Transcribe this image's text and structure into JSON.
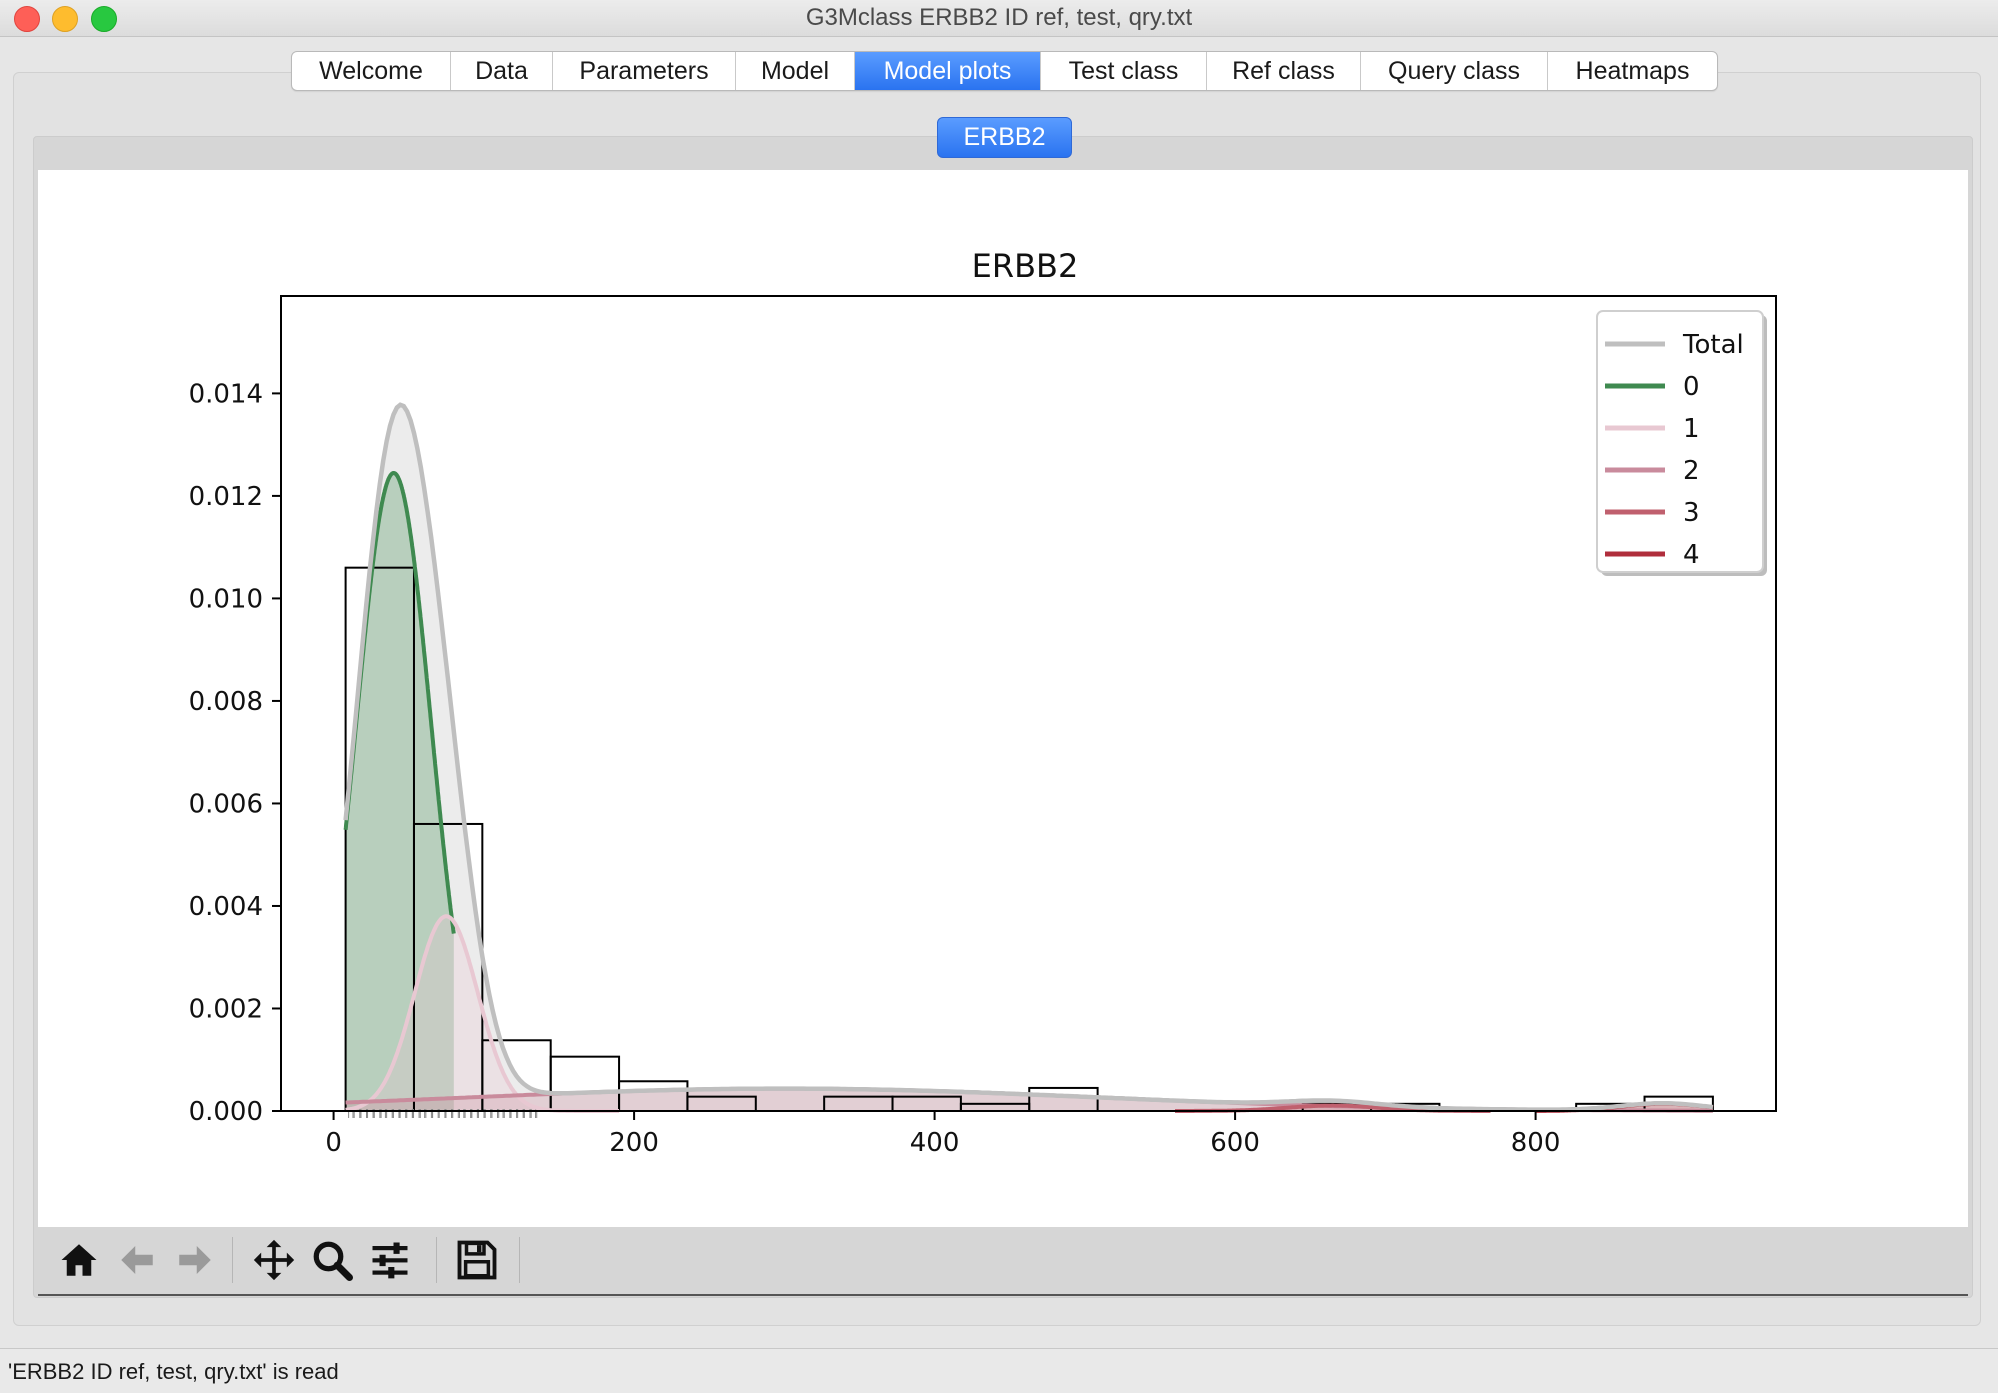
{
  "window": {
    "title": "G3Mclass ERBB2 ID ref, test, qry.txt"
  },
  "tabs": [
    {
      "label": "Welcome",
      "active": false
    },
    {
      "label": "Data",
      "active": false
    },
    {
      "label": "Parameters",
      "active": false
    },
    {
      "label": "Model",
      "active": false
    },
    {
      "label": "Model plots",
      "active": true
    },
    {
      "label": "Test class",
      "active": false
    },
    {
      "label": "Ref class",
      "active": false
    },
    {
      "label": "Query class",
      "active": false
    },
    {
      "label": "Heatmaps",
      "active": false
    }
  ],
  "subtab": {
    "label": "ERBB2"
  },
  "toolbar": {
    "buttons": [
      {
        "name": "home-icon"
      },
      {
        "name": "back-arrow-icon"
      },
      {
        "name": "forward-arrow-icon"
      },
      {
        "name": "pan-icon"
      },
      {
        "name": "zoom-icon"
      },
      {
        "name": "configure-subplots-icon"
      },
      {
        "name": "save-icon"
      }
    ]
  },
  "status": {
    "text": "'ERBB2 ID ref, test, qry.txt' is read"
  },
  "chart_data": {
    "type": "histogram-density",
    "title": "ERBB2",
    "xlabel": "",
    "ylabel": "",
    "xlim": [
      -35,
      960
    ],
    "ylim": [
      0,
      0.0159
    ],
    "xticks": [
      0,
      200,
      400,
      600,
      800
    ],
    "yticks": [
      0.0,
      0.002,
      0.004,
      0.006,
      0.008,
      0.01,
      0.012,
      0.014
    ],
    "ytick_labels": [
      "0.000",
      "0.002",
      "0.004",
      "0.006",
      "0.008",
      "0.010",
      "0.012",
      "0.014"
    ],
    "legend": {
      "position": "top-right",
      "entries": [
        "Total",
        "0",
        "1",
        "2",
        "3",
        "4"
      ]
    },
    "histogram": {
      "bin_edges": [
        8,
        53.5,
        99,
        144.5,
        190,
        235.5,
        281,
        326.5,
        372,
        417.5,
        463,
        508.5,
        554,
        599.5,
        645,
        690.5,
        736,
        781.5,
        827,
        872.5,
        918
      ],
      "densities": [
        0.0106,
        0.0056,
        0.00138,
        0.00106,
        0.00058,
        0.00028,
        0.0,
        0.00028,
        0.00028,
        0.00014,
        0.00045,
        0.0,
        0.0,
        0.0,
        0.00014,
        0.00014,
        0.0,
        0.0,
        0.00014,
        0.00028
      ]
    },
    "components": [
      {
        "name": "0",
        "color": "#3f8a50",
        "weight": 0.78,
        "mean": 40,
        "sd": 25,
        "xmin": 8,
        "xmax": 80
      },
      {
        "name": "1",
        "color": "#e8c8d2",
        "weight": 0.2,
        "mean": 75,
        "sd": 21,
        "xmin": 8,
        "xmax": 190
      },
      {
        "name": "2",
        "color": "#c98b9c",
        "weight": 0.23,
        "mean": 300,
        "sd": 210,
        "xmin": 8,
        "xmax": 918
      },
      {
        "name": "3",
        "color": "#c0606e",
        "weight": 0.008,
        "mean": 665,
        "sd": 30,
        "xmin": 560,
        "xmax": 770
      },
      {
        "name": "4",
        "color": "#b02e3c",
        "weight": 0.01,
        "mean": 885,
        "sd": 28,
        "xmin": 800,
        "xmax": 918
      }
    ],
    "total": {
      "name": "Total",
      "color": "#bfbfbf",
      "xmin": 8,
      "xmax": 918
    }
  }
}
